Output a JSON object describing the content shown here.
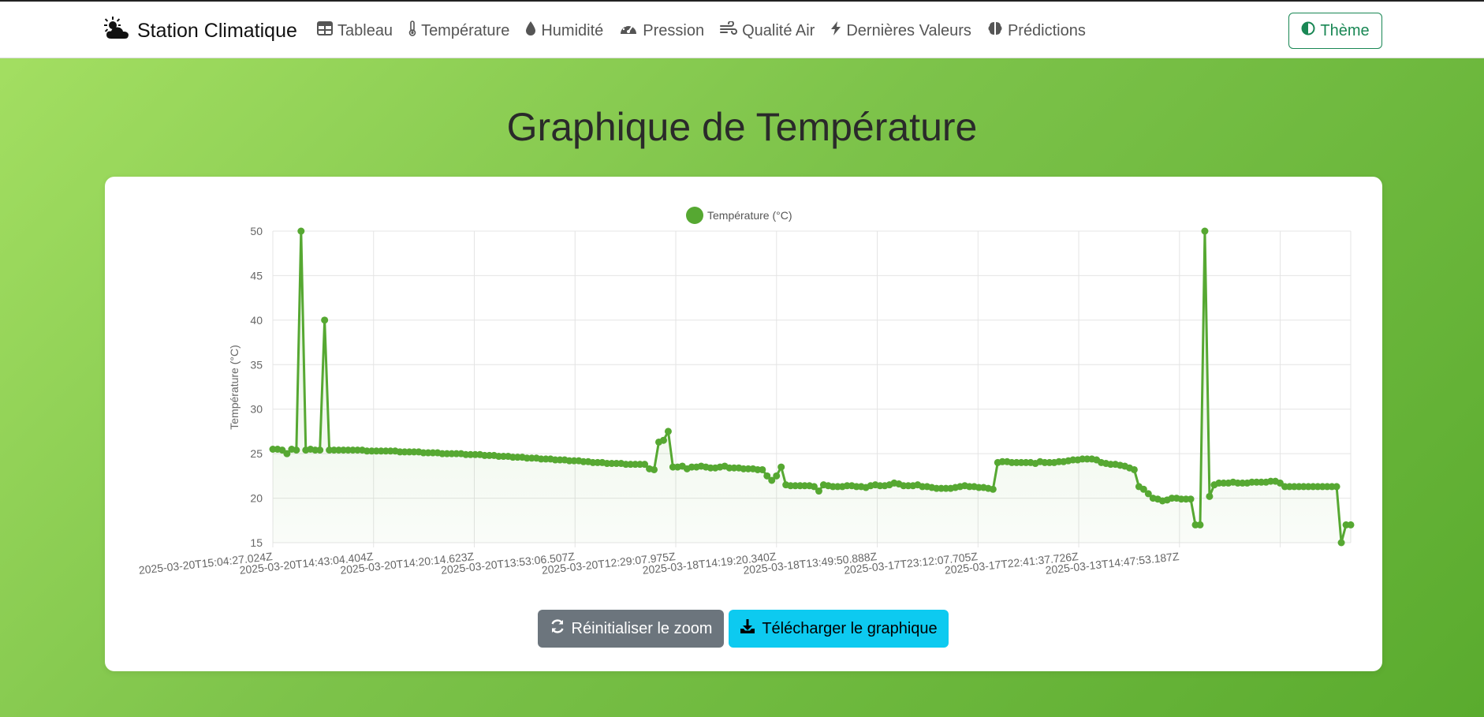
{
  "nav": {
    "brand": "Station Climatique",
    "brand_icon": "cloud-sun-icon",
    "items": [
      {
        "label": "Tableau",
        "icon": "table-icon"
      },
      {
        "label": "Température",
        "icon": "thermometer-icon"
      },
      {
        "label": "Humidité",
        "icon": "droplet-icon"
      },
      {
        "label": "Pression",
        "icon": "gauge-icon"
      },
      {
        "label": "Qualité Air",
        "icon": "wind-icon"
      },
      {
        "label": "Dernières Valeurs",
        "icon": "bolt-icon"
      },
      {
        "label": "Prédictions",
        "icon": "brain-icon"
      }
    ],
    "theme_label": "Thème",
    "theme_icon": "half-circle-icon"
  },
  "page": {
    "title": "Graphique de Température"
  },
  "buttons": {
    "reset_zoom": "Réinitialiser le zoom",
    "download": "Télécharger le graphique"
  },
  "colors": {
    "series": "#56a832",
    "theme_accent": "#198754",
    "reset_button": "#6c757d",
    "download_button": "#0dcaf0"
  },
  "chart_data": {
    "type": "line",
    "title": "",
    "xlabel": "",
    "ylabel": "Température (°C)",
    "ylim": [
      15,
      50
    ],
    "yticks": [
      15,
      20,
      25,
      30,
      35,
      40,
      45,
      50
    ],
    "grid": true,
    "legend_position": "top-center",
    "filled_area": true,
    "x_tick_labels": [
      "2025-03-20T15:04:27.024Z",
      "2025-03-20T14:43:04.404Z",
      "2025-03-20T14:20:14.623Z",
      "2025-03-20T13:53:06.507Z",
      "2025-03-20T12:29:07.975Z",
      "2025-03-18T14:19:20.340Z",
      "2025-03-18T13:49:50.888Z",
      "2025-03-17T23:12:07.705Z",
      "2025-03-17T22:41:37.726Z",
      "2025-03-13T14:47:53.187Z"
    ],
    "series": [
      {
        "name": "Température (°C)",
        "color": "#56a832",
        "values": [
          25.5,
          25.5,
          25.4,
          25.0,
          25.5,
          25.4,
          50.0,
          25.4,
          25.5,
          25.4,
          25.4,
          40.0,
          25.4,
          25.4,
          25.4,
          25.4,
          25.4,
          25.4,
          25.4,
          25.4,
          25.3,
          25.3,
          25.3,
          25.3,
          25.3,
          25.3,
          25.3,
          25.2,
          25.2,
          25.2,
          25.2,
          25.2,
          25.1,
          25.1,
          25.1,
          25.1,
          25.0,
          25.0,
          25.0,
          25.0,
          25.0,
          24.9,
          24.9,
          24.9,
          24.9,
          24.8,
          24.8,
          24.8,
          24.7,
          24.7,
          24.7,
          24.6,
          24.6,
          24.6,
          24.5,
          24.5,
          24.5,
          24.4,
          24.4,
          24.4,
          24.3,
          24.3,
          24.3,
          24.2,
          24.2,
          24.2,
          24.1,
          24.1,
          24.0,
          24.0,
          24.0,
          23.9,
          23.9,
          23.9,
          23.9,
          23.8,
          23.8,
          23.8,
          23.8,
          23.8,
          23.3,
          23.2,
          26.3,
          26.5,
          27.5,
          23.5,
          23.5,
          23.6,
          23.3,
          23.5,
          23.5,
          23.6,
          23.5,
          23.4,
          23.4,
          23.5,
          23.6,
          23.4,
          23.4,
          23.4,
          23.3,
          23.3,
          23.3,
          23.2,
          23.2,
          22.5,
          22.0,
          22.5,
          23.5,
          21.5,
          21.4,
          21.4,
          21.4,
          21.4,
          21.4,
          21.3,
          20.8,
          21.5,
          21.4,
          21.3,
          21.3,
          21.3,
          21.4,
          21.4,
          21.3,
          21.3,
          21.2,
          21.4,
          21.5,
          21.4,
          21.4,
          21.5,
          21.7,
          21.6,
          21.4,
          21.4,
          21.4,
          21.5,
          21.3,
          21.3,
          21.2,
          21.1,
          21.1,
          21.1,
          21.1,
          21.2,
          21.3,
          21.4,
          21.3,
          21.3,
          21.2,
          21.2,
          21.1,
          21.0,
          24.0,
          24.1,
          24.1,
          24.0,
          24.0,
          24.0,
          24.0,
          24.0,
          23.9,
          24.1,
          24.0,
          24.0,
          24.0,
          24.1,
          24.1,
          24.2,
          24.3,
          24.3,
          24.4,
          24.4,
          24.4,
          24.3,
          24.0,
          23.9,
          23.8,
          23.8,
          23.7,
          23.6,
          23.4,
          23.2,
          21.3,
          21.0,
          20.5,
          20.0,
          19.9,
          19.7,
          19.8,
          20.0,
          20.0,
          19.9,
          19.9,
          19.9,
          17.0,
          17.0,
          50.0,
          20.2,
          21.5,
          21.7,
          21.7,
          21.7,
          21.8,
          21.7,
          21.7,
          21.7,
          21.8,
          21.8,
          21.8,
          21.8,
          21.9,
          21.9,
          21.7,
          21.3,
          21.3,
          21.3,
          21.3,
          21.3,
          21.3,
          21.3,
          21.3,
          21.3,
          21.3,
          21.3,
          21.3,
          15.0,
          17.0,
          17.0
        ]
      }
    ]
  }
}
